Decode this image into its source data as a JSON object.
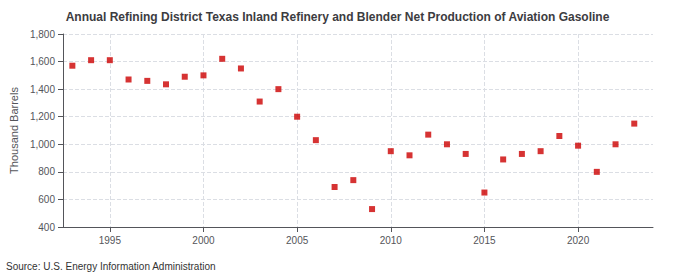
{
  "chart_data": {
    "type": "scatter",
    "title": "Annual Refining District Texas Inland Refinery and Blender Net Production of Aviation Gasoline",
    "ylabel": "Thousand Barrels",
    "annotation": "Source: U.S. Energy Information Administration",
    "x": [
      1993,
      1994,
      1995,
      1996,
      1997,
      1998,
      1999,
      2000,
      2001,
      2002,
      2003,
      2004,
      2005,
      2006,
      2007,
      2008,
      2009,
      2010,
      2011,
      2012,
      2013,
      2014,
      2015,
      2016,
      2017,
      2018,
      2019,
      2020,
      2021,
      2022,
      2023
    ],
    "values": [
      1570,
      1610,
      1610,
      1470,
      1460,
      1435,
      1490,
      1500,
      1620,
      1550,
      1310,
      1400,
      1200,
      1030,
      690,
      740,
      530,
      950,
      920,
      1070,
      1000,
      930,
      650,
      890,
      930,
      950,
      1060,
      990,
      800,
      1000,
      1150
    ],
    "color": "#cc0000",
    "marker": "square",
    "xlim": [
      1992.5,
      2024
    ],
    "xticks": [
      1995,
      2000,
      2005,
      2010,
      2015,
      2020
    ],
    "ylim": [
      400,
      1800
    ],
    "yticks": [
      400,
      600,
      800,
      {
        "value": 1000,
        "label": "1,000"
      },
      {
        "value": 1200,
        "label": "1,200"
      },
      {
        "value": 1400,
        "label": "1,400"
      },
      {
        "value": 1600,
        "label": "1,600"
      },
      {
        "value": 1800,
        "label": "1,800"
      }
    ],
    "grid": true
  }
}
